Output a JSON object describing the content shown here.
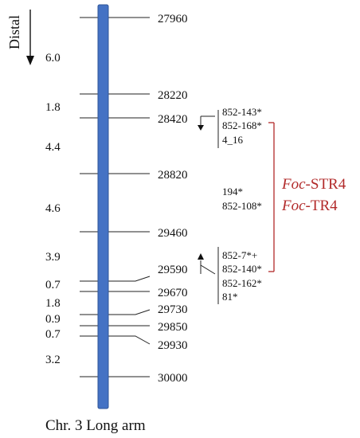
{
  "direction_label": "Distal",
  "caption": "Chr. 3 Long arm",
  "colors": {
    "chromosome": "#4472C4",
    "chromosome_edge": "#2f5597",
    "line": "#222222",
    "qtl": "#b22a2a"
  },
  "markers": [
    {
      "name": "27960"
    },
    {
      "name": "28220"
    },
    {
      "name": "28420"
    },
    {
      "name": "28820"
    },
    {
      "name": "29460"
    },
    {
      "name": "29590"
    },
    {
      "name": "29670"
    },
    {
      "name": "29730"
    },
    {
      "name": "29850"
    },
    {
      "name": "29930"
    },
    {
      "name": "30000"
    }
  ],
  "intervals_cm": [
    "6.0",
    "1.8",
    "4.4",
    "4.6",
    "3.9",
    "0.7",
    "1.8",
    "0.9",
    "0.7",
    "3.2"
  ],
  "genes": [
    "852-143*",
    "852-168*",
    "4_16",
    "194*",
    "852-108*",
    "852-7*+",
    "852-140*",
    "852-162*",
    "81*"
  ],
  "qtl": [
    {
      "italic": "Foc",
      "rest": "-STR4"
    },
    {
      "italic": "Foc",
      "rest": "-TR4"
    }
  ]
}
